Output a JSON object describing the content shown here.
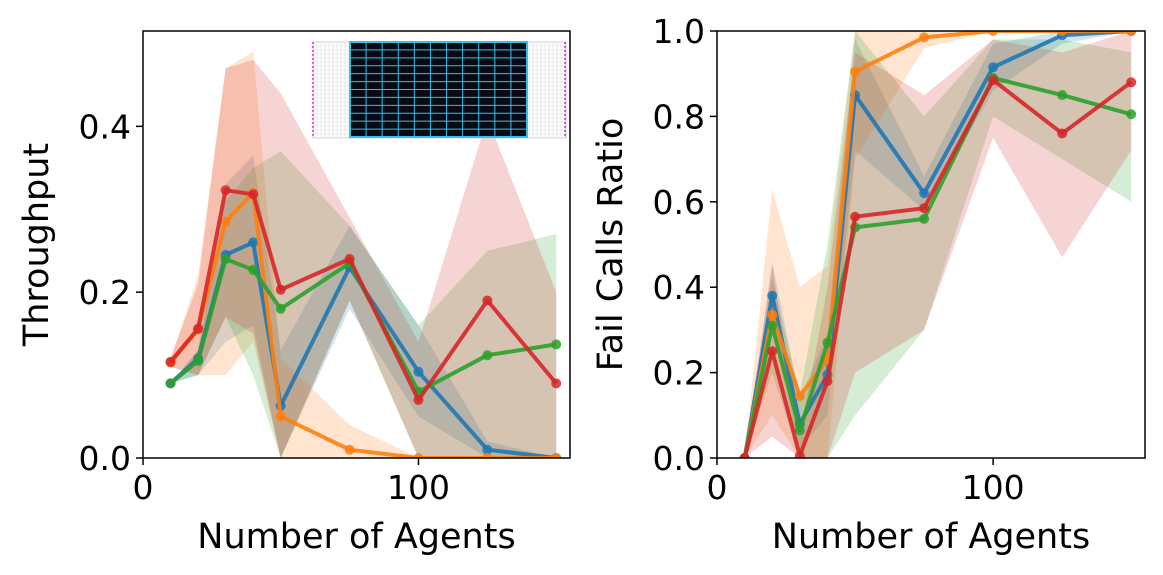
{
  "chart_data": [
    {
      "type": "line",
      "ylabel": "Throughput",
      "xlabel": "Number of Agents",
      "xlim": [
        0,
        155
      ],
      "ylim": [
        0,
        0.515
      ],
      "xticks": [
        0,
        100
      ],
      "xtick_labels": [
        "0",
        "100"
      ],
      "yticks": [
        0,
        0.2,
        0.4
      ],
      "ytick_labels": [
        "0.0",
        "0.2",
        "0.4"
      ],
      "x": [
        10,
        20,
        30,
        40,
        50,
        75,
        100,
        125,
        150
      ],
      "inset": "warehouse-grid-map",
      "series": [
        {
          "name": "blue",
          "color": "#1f77b4",
          "values": [
            0.09,
            0.12,
            0.245,
            0.26,
            0.063,
            0.23,
            0.104,
            0.01,
            0.0
          ],
          "lower": [
            0.09,
            0.1,
            0.14,
            0.16,
            0.0,
            0.18,
            0.05,
            0.0,
            0.0
          ],
          "upper": [
            0.09,
            0.13,
            0.33,
            0.365,
            0.13,
            0.28,
            0.16,
            0.02,
            0.0
          ]
        },
        {
          "name": "orange",
          "color": "#ff7f0e",
          "values": [
            0.115,
            0.155,
            0.285,
            0.32,
            0.05,
            0.01,
            0.0,
            0.0,
            0.0
          ],
          "lower": [
            0.11,
            0.1,
            0.1,
            0.14,
            0.0,
            0.0,
            0.0,
            0.0,
            0.0
          ],
          "upper": [
            0.12,
            0.22,
            0.47,
            0.49,
            0.12,
            0.04,
            0.0,
            0.0,
            0.0
          ]
        },
        {
          "name": "green",
          "color": "#2ca02c",
          "values": [
            0.09,
            0.117,
            0.24,
            0.227,
            0.18,
            0.235,
            0.08,
            0.124,
            0.137
          ],
          "lower": [
            0.09,
            0.1,
            0.17,
            0.1,
            0.0,
            0.19,
            0.0,
            0.0,
            0.0
          ],
          "upper": [
            0.09,
            0.13,
            0.31,
            0.35,
            0.37,
            0.28,
            0.16,
            0.25,
            0.27
          ]
        },
        {
          "name": "red",
          "color": "#d62728",
          "values": [
            0.116,
            0.156,
            0.323,
            0.318,
            0.203,
            0.24,
            0.07,
            0.19,
            0.09
          ],
          "lower": [
            0.11,
            0.1,
            0.17,
            0.15,
            0.0,
            0.19,
            0.0,
            0.0,
            0.0
          ],
          "upper": [
            0.12,
            0.21,
            0.47,
            0.48,
            0.44,
            0.29,
            0.14,
            0.41,
            0.2
          ]
        }
      ]
    },
    {
      "type": "line",
      "ylabel": "Fail Calls Ratio",
      "xlabel": "Number of Agents",
      "xlim": [
        0,
        155
      ],
      "ylim": [
        0,
        1.0
      ],
      "xticks": [
        0,
        100
      ],
      "xtick_labels": [
        "0",
        "100"
      ],
      "yticks": [
        0,
        0.2,
        0.4,
        0.6,
        0.8,
        1.0
      ],
      "ytick_labels": [
        "0.0",
        "0.2",
        "0.4",
        "0.6",
        "0.8",
        "1.0"
      ],
      "x": [
        10,
        20,
        30,
        40,
        50,
        75,
        100,
        125,
        150
      ],
      "series": [
        {
          "name": "blue",
          "color": "#1f77b4",
          "values": [
            0.0,
            0.38,
            0.08,
            0.195,
            0.85,
            0.62,
            0.915,
            0.99,
            1.0
          ],
          "lower": [
            0.0,
            0.3,
            0.02,
            0.1,
            0.72,
            0.58,
            0.86,
            0.97,
            1.0
          ],
          "upper": [
            0.0,
            0.46,
            0.14,
            0.29,
            0.98,
            0.66,
            0.97,
            1.0,
            1.0
          ]
        },
        {
          "name": "orange",
          "color": "#ff7f0e",
          "values": [
            0.0,
            0.335,
            0.145,
            0.23,
            0.905,
            0.985,
            1.0,
            1.0,
            1.0
          ],
          "lower": [
            0.0,
            0.1,
            0.0,
            0.0,
            0.7,
            0.96,
            1.0,
            1.0,
            1.0
          ],
          "upper": [
            0.0,
            0.63,
            0.4,
            0.45,
            1.0,
            1.0,
            1.0,
            1.0,
            1.0
          ]
        },
        {
          "name": "green",
          "color": "#2ca02c",
          "values": [
            0.0,
            0.31,
            0.065,
            0.27,
            0.54,
            0.56,
            0.89,
            0.85,
            0.805
          ],
          "lower": [
            0.0,
            0.2,
            0.0,
            0.0,
            0.1,
            0.3,
            0.8,
            0.7,
            0.6
          ],
          "upper": [
            0.0,
            0.42,
            0.15,
            0.5,
            1.0,
            0.8,
            0.98,
            0.98,
            0.95
          ]
        },
        {
          "name": "red",
          "color": "#d62728",
          "values": [
            0.0,
            0.25,
            0.005,
            0.18,
            0.565,
            0.585,
            0.885,
            0.76,
            0.88
          ],
          "lower": [
            0.0,
            0.05,
            0.0,
            0.0,
            0.2,
            0.3,
            0.75,
            0.47,
            0.72
          ],
          "upper": [
            0.0,
            0.45,
            0.05,
            0.4,
            0.95,
            0.85,
            0.98,
            0.95,
            1.0
          ]
        }
      ]
    }
  ]
}
